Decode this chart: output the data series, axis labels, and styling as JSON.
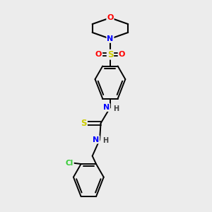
{
  "bg_color": "#ececec",
  "atom_colors": {
    "C": "#000000",
    "N": "#0000ff",
    "O": "#ff0000",
    "S": "#cccc00",
    "Cl": "#33cc33",
    "H": "#404040"
  },
  "bond_color": "#000000",
  "figsize": [
    3.0,
    3.0
  ],
  "dpi": 100,
  "xlim": [
    0,
    10
  ],
  "ylim": [
    0,
    10
  ]
}
